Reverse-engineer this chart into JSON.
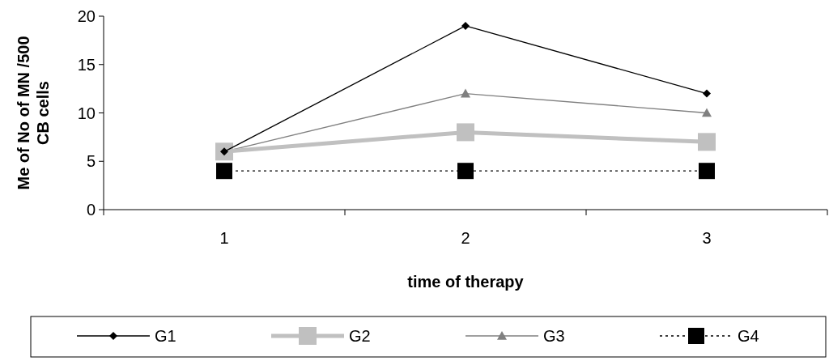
{
  "chart_data": {
    "type": "line",
    "ylabel": "Me of No of MN /500 CB cells",
    "xlabel": "time of therapy",
    "categories": [
      "1",
      "2",
      "3"
    ],
    "ylim": [
      0,
      20
    ],
    "yticks": [
      0,
      5,
      10,
      15,
      20
    ],
    "grid": false,
    "legend": "bottom",
    "series": [
      {
        "name": "G1",
        "color": "#000000",
        "values": [
          6,
          19,
          12
        ],
        "marker": "diamond",
        "line_style": "solid"
      },
      {
        "name": "G2",
        "color": "#c0c0c0",
        "values": [
          6,
          8,
          7
        ],
        "marker": "square",
        "line_style": "solid"
      },
      {
        "name": "G3",
        "color": "#808080",
        "values": [
          6,
          12,
          10
        ],
        "marker": "triangle",
        "line_style": "solid"
      },
      {
        "name": "G4",
        "color": "#000000",
        "values": [
          4,
          4,
          4
        ],
        "marker": "square",
        "line_style": "dotted"
      }
    ]
  }
}
